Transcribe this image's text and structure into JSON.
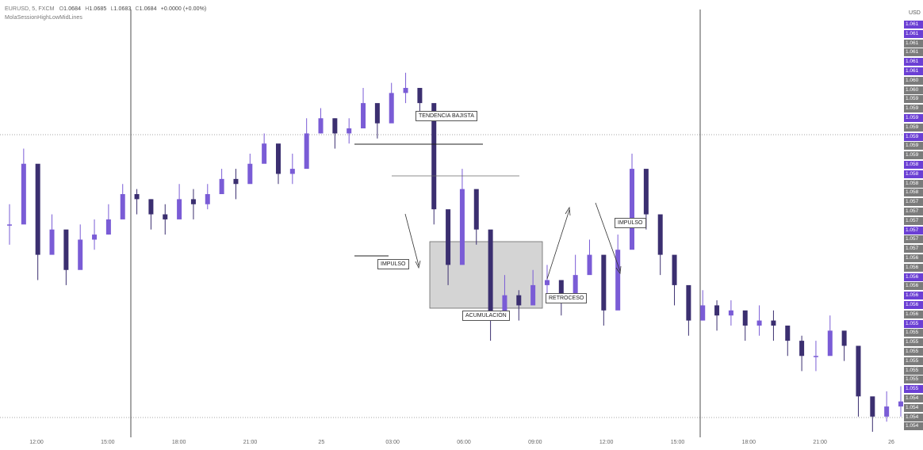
{
  "legend": {
    "symbol": "EURUSD, 5, FXCM",
    "o_label": "O",
    "o_value": "1.0684",
    "h_label": "H",
    "h_value": "1.0685",
    "l_label": "L",
    "l_value": "1.0683",
    "c_label": "C",
    "c_value": "1.0684",
    "change": "+0.0000 (+0.00%)",
    "indicator": "MolaSessionHighLowMidLines"
  },
  "currency": "USD",
  "annotations": {
    "trend": "TENDENCIA BAJISTA",
    "impulse_1": "IMPULSO",
    "accumulation": "ACUMULACIÓN",
    "retracement": "RETROCESO",
    "impulse_2": "IMPULSO"
  },
  "colors": {
    "candle": "#3b2f70",
    "candle_alt": "#7a5cd6",
    "price_tag_purple": "#6b3fd4",
    "price_tag_gray": "#7b7b7b",
    "accumulation_fill": "#d4d4d4",
    "session_line": "#222222"
  },
  "chart_data": {
    "type": "candlestick",
    "x_ticks": [
      "12:00",
      "15:00",
      "18:00",
      "21:00",
      "25",
      "03:00",
      "06:00",
      "09:00",
      "12:00",
      "15:00",
      "18:00",
      "21:00",
      "26"
    ],
    "price_axis_labels": [
      "1.061",
      "1.061",
      "1.061",
      "1.061",
      "1.061",
      "1.061",
      "1.060",
      "1.060",
      "1.059",
      "1.059",
      "1.059",
      "1.059",
      "1.059",
      "1.059",
      "1.059",
      "1.058",
      "1.058",
      "1.058",
      "1.058",
      "1.057",
      "1.057",
      "1.057",
      "1.057",
      "1.057",
      "1.057",
      "1.056",
      "1.056",
      "1.056",
      "1.056",
      "1.056",
      "1.056",
      "1.056",
      "1.055",
      "1.055",
      "1.055",
      "1.055",
      "1.055",
      "1.055",
      "1.055",
      "1.055",
      "1.054",
      "1.054",
      "1.054",
      "1.054"
    ],
    "price_tag_highlight": [
      true,
      true,
      false,
      false,
      true,
      true,
      false,
      false,
      false,
      false,
      true,
      false,
      true,
      false,
      false,
      true,
      true,
      false,
      false,
      false,
      false,
      false,
      true,
      false,
      false,
      false,
      false,
      true,
      false,
      true,
      true,
      false,
      true,
      false,
      false,
      false,
      false,
      false,
      false,
      true,
      false,
      false,
      false,
      false
    ],
    "series": [
      {
        "close": [
          1.0572,
          1.0584,
          1.0566,
          1.0571,
          1.0563,
          1.0569,
          1.057,
          1.0573,
          1.0578,
          1.0577,
          1.0574,
          1.0573,
          1.0577,
          1.0576,
          1.0578,
          1.0581,
          1.058,
          1.0584,
          1.0588,
          1.0582,
          1.0583,
          1.059,
          1.0593,
          1.059,
          1.0591,
          1.0596,
          1.0592,
          1.0598,
          1.0599,
          1.0596,
          1.0575,
          1.0564,
          1.0579,
          1.0571,
          1.0553,
          1.0558,
          1.0556,
          1.056,
          1.0561,
          1.0557,
          1.0562,
          1.0566,
          1.0555,
          1.0567,
          1.0583,
          1.0574,
          1.0566,
          1.056,
          1.0553,
          1.0556,
          1.0554,
          1.0555,
          1.0552,
          1.0553,
          1.0552,
          1.0549,
          1.0546,
          1.0546,
          1.0551,
          1.0548,
          1.0538,
          1.0534,
          1.0536,
          1.0537
        ],
        "high": [
          1.0576,
          1.0587,
          1.0569,
          1.0574,
          1.0566,
          1.0572,
          1.0573,
          1.0576,
          1.058,
          1.0579,
          1.0577,
          1.0576,
          1.058,
          1.0579,
          1.058,
          1.0583,
          1.0583,
          1.0586,
          1.059,
          1.0585,
          1.0586,
          1.0593,
          1.0595,
          1.0593,
          1.0593,
          1.0599,
          1.0595,
          1.06,
          1.0602,
          1.0598,
          1.0578,
          1.0567,
          1.0583,
          1.0574,
          1.0558,
          1.0562,
          1.0559,
          1.0563,
          1.0564,
          1.056,
          1.0566,
          1.0569,
          1.0558,
          1.057,
          1.0586,
          1.0578,
          1.0569,
          1.0563,
          1.0555,
          1.0559,
          1.0557,
          1.0557,
          1.0554,
          1.0556,
          1.0555,
          1.0552,
          1.055,
          1.0549,
          1.0554,
          1.055,
          1.0541,
          1.0537,
          1.0539,
          1.054
        ],
        "low": [
          1.0568,
          1.058,
          1.0561,
          1.0567,
          1.056,
          1.0566,
          1.0567,
          1.057,
          1.0575,
          1.0574,
          1.0571,
          1.057,
          1.0574,
          1.0573,
          1.0575,
          1.0578,
          1.0577,
          1.0581,
          1.0585,
          1.058,
          1.058,
          1.0587,
          1.059,
          1.0587,
          1.0588,
          1.0593,
          1.0589,
          1.0595,
          1.0596,
          1.0594,
          1.0572,
          1.056,
          1.0576,
          1.0568,
          1.0549,
          1.0554,
          1.0553,
          1.0557,
          1.0558,
          1.0554,
          1.0559,
          1.0563,
          1.0552,
          1.0563,
          1.058,
          1.0571,
          1.0562,
          1.0556,
          1.055,
          1.0553,
          1.0551,
          1.0552,
          1.0549,
          1.055,
          1.0549,
          1.0546,
          1.0543,
          1.0543,
          1.0548,
          1.0545,
          1.0534,
          1.0531,
          1.0533,
          1.0534
        ]
      }
    ]
  }
}
